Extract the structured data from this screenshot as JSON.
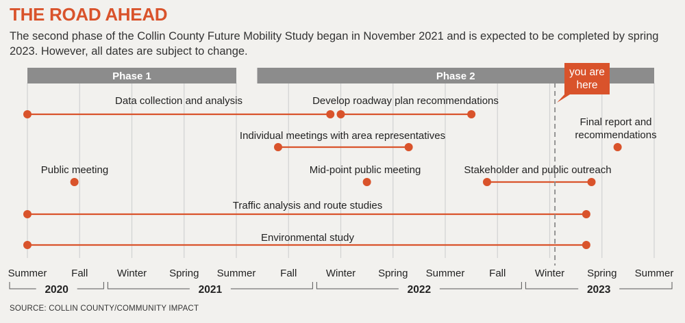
{
  "header": {
    "title": "THE ROAD AHEAD",
    "description": "The second phase of the Collin County Future Mobility Study began in November 2021 and is expected to be completed by spring 2023. However, all dates are subject to change."
  },
  "source": "SOURCE: COLLIN COUNTY/COMMUNITY IMPACT",
  "colors": {
    "accent": "#d9532b",
    "phase_bar": "#8c8c8c",
    "gridline": "#d2d2d2",
    "text": "#222222"
  },
  "chart_data": {
    "type": "timeline",
    "title": "THE ROAD AHEAD",
    "time_unit": "season",
    "ticks": [
      "Summer",
      "Fall",
      "Winter",
      "Spring",
      "Summer",
      "Fall",
      "Winter",
      "Spring",
      "Summer",
      "Fall",
      "Winter",
      "Spring",
      "Summer"
    ],
    "years": [
      {
        "label": "2020",
        "start": 0,
        "end": 1.5
      },
      {
        "label": "2021",
        "start": 1.5,
        "end": 5.5
      },
      {
        "label": "2022",
        "start": 5.5,
        "end": 9.5
      },
      {
        "label": "2023",
        "start": 9.5,
        "end": 12
      }
    ],
    "phases": [
      {
        "label": "Phase 1",
        "start": 0,
        "end": 4
      },
      {
        "label": "Phase 2",
        "start": 4.4,
        "end": 12
      }
    ],
    "current_marker": {
      "label": "you are here",
      "position": 10.1
    },
    "activities": [
      {
        "label": "Data collection and analysis",
        "segments": [
          [
            0,
            5.8
          ]
        ]
      },
      {
        "label": "Develop roadway plan recommendations",
        "segments": [
          [
            6.0,
            8.5
          ]
        ]
      },
      {
        "label": "Individual meetings with area representatives",
        "segments": [
          [
            4.8,
            7.3
          ]
        ]
      },
      {
        "label": "Final report and recommendations",
        "points": [
          11.3
        ]
      },
      {
        "label": "Public meeting",
        "points": [
          0.9
        ]
      },
      {
        "label": "Mid-point public meeting",
        "points": [
          6.5
        ]
      },
      {
        "label": "Stakeholder and public outreach",
        "segments": [
          [
            8.8,
            10.8
          ]
        ]
      },
      {
        "label": "Traffic analysis and route studies",
        "segments": [
          [
            0,
            10.7
          ]
        ]
      },
      {
        "label": "Environmental study",
        "segments": [
          [
            0,
            10.7
          ]
        ]
      }
    ]
  }
}
